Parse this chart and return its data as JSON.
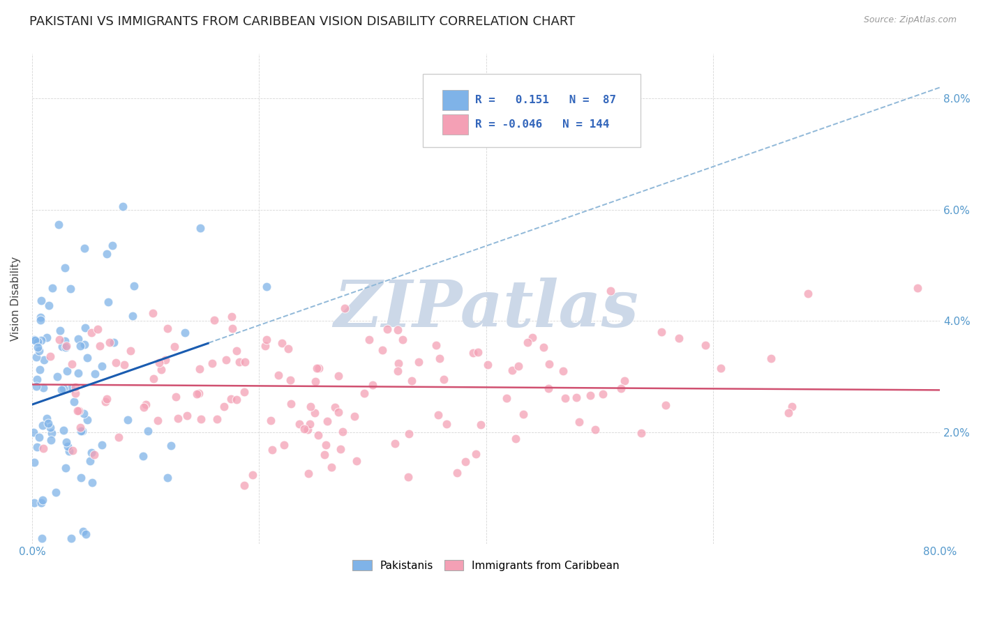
{
  "title": "PAKISTANI VS IMMIGRANTS FROM CARIBBEAN VISION DISABILITY CORRELATION CHART",
  "source": "Source: ZipAtlas.com",
  "ylabel": "Vision Disability",
  "xlim": [
    0.0,
    0.8
  ],
  "ylim": [
    0.0,
    0.088
  ],
  "yticks": [
    0.02,
    0.04,
    0.06,
    0.08
  ],
  "ytick_labels": [
    "2.0%",
    "4.0%",
    "6.0%",
    "8.0%"
  ],
  "xticks": [
    0.0,
    0.2,
    0.4,
    0.6,
    0.8
  ],
  "xtick_labels": [
    "0.0%",
    "",
    "",
    "",
    "80.0%"
  ],
  "blue_R": 0.151,
  "blue_N": 87,
  "pink_R": -0.046,
  "pink_N": 144,
  "blue_color": "#7fb3e8",
  "pink_color": "#f4a0b5",
  "blue_line_color": "#1a5cb0",
  "pink_line_color": "#d05070",
  "dashed_line_color": "#90b8d8",
  "watermark_text": "ZIPatlas",
  "watermark_color": "#ccd8e8",
  "background_color": "#ffffff",
  "legend_label_blue": "Pakistanis",
  "legend_label_pink": "Immigrants from Caribbean",
  "title_fontsize": 13,
  "axis_label_fontsize": 11,
  "tick_fontsize": 11,
  "legend_fontsize": 11,
  "blue_line_x0": 0.0,
  "blue_line_y0": 0.025,
  "blue_line_x1": 0.155,
  "blue_line_y1": 0.036,
  "dash_line_x0": 0.0,
  "dash_line_y0": 0.025,
  "dash_line_x1": 0.8,
  "dash_line_y1": 0.082,
  "pink_line_x0": 0.0,
  "pink_line_y0": 0.0286,
  "pink_line_x1": 0.8,
  "pink_line_y1": 0.0276
}
